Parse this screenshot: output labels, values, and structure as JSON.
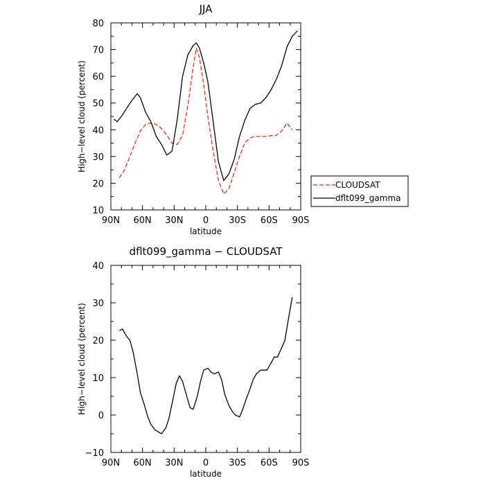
{
  "chart_data": [
    {
      "type": "line",
      "title": "JJA",
      "xlabel": "latitude",
      "ylabel": "High−level cloud (percent)",
      "xlim": [
        90,
        -90
      ],
      "ylim": [
        10,
        80
      ],
      "x_ticks": [
        90,
        60,
        30,
        0,
        -30,
        -60,
        -90
      ],
      "x_tick_labels": [
        "90N",
        "60N",
        "30N",
        "0",
        "30S",
        "60S",
        "90S"
      ],
      "y_ticks": [
        10,
        20,
        30,
        40,
        50,
        60,
        70,
        80
      ],
      "y_tick_labels": [
        "10",
        "20",
        "30",
        "40",
        "50",
        "60",
        "70",
        "80"
      ],
      "grid": false,
      "legend": "right",
      "series": [
        {
          "name": "CLOUDSAT",
          "color": "#e8271f",
          "dash": true,
          "x": [
            82,
            77,
            72,
            67,
            62,
            57,
            52,
            47,
            42,
            37,
            32,
            27,
            22,
            17,
            12,
            9,
            6,
            2,
            -2,
            -7,
            -12,
            -17,
            -22,
            -27,
            -32,
            -37,
            -42,
            -47,
            -52,
            -57,
            -62,
            -67,
            -72,
            -77,
            -82
          ],
          "y": [
            22,
            25,
            30,
            35,
            39.5,
            42,
            42.5,
            42,
            40.5,
            38,
            35,
            34.5,
            38,
            49,
            63,
            70.5,
            67,
            57,
            45,
            32,
            21,
            16,
            18,
            24,
            30,
            35,
            37,
            37.5,
            37.5,
            37.5,
            37.8,
            38,
            39.5,
            42.5,
            40
          ]
        },
        {
          "name": "dflt099_gamma",
          "color": "#000000",
          "dash": false,
          "x": [
            87,
            84,
            80,
            75,
            70,
            65,
            62,
            57,
            52,
            47,
            42,
            37,
            32,
            27,
            22,
            17,
            12,
            9,
            6,
            2,
            -2,
            -7,
            -12,
            -17,
            -22,
            -27,
            -32,
            -37,
            -42,
            -47,
            -52,
            -57,
            -62,
            -67,
            -72,
            -77,
            -82,
            -87
          ],
          "y": [
            44,
            43,
            45,
            48,
            51,
            53.5,
            52,
            46.5,
            43,
            37.5,
            34.5,
            30.5,
            32,
            44,
            60,
            68,
            71.5,
            72.5,
            70.5,
            65,
            58,
            43,
            28,
            21,
            23.5,
            29,
            37.5,
            43.5,
            48,
            49.5,
            50,
            52,
            55,
            59,
            64,
            71,
            75,
            77
          ]
        }
      ]
    },
    {
      "type": "line",
      "title": "dflt099_gamma − CLOUDSAT",
      "xlabel": "latitude",
      "ylabel": "High−level cloud (percent)",
      "xlim": [
        90,
        -90
      ],
      "ylim": [
        -10,
        40
      ],
      "x_ticks": [
        90,
        60,
        30,
        0,
        -30,
        -60,
        -90
      ],
      "x_tick_labels": [
        "90N",
        "60N",
        "30N",
        "0",
        "30S",
        "60S",
        "90S"
      ],
      "y_ticks": [
        -10,
        0,
        10,
        20,
        30,
        40
      ],
      "y_tick_labels": [
        "−10",
        "0",
        "10",
        "20",
        "30",
        "40"
      ],
      "grid": false,
      "series": [
        {
          "color": "#000000",
          "dash": false,
          "x": [
            82,
            79,
            75,
            72,
            69,
            65,
            62,
            58,
            55,
            52,
            48,
            45,
            42,
            38,
            35,
            32,
            28,
            25,
            22,
            18,
            15,
            12,
            8,
            5,
            2,
            -2,
            -5,
            -8,
            -12,
            -15,
            -18,
            -22,
            -25,
            -28,
            -32,
            -35,
            -38,
            -42,
            -45,
            -48,
            -52,
            -55,
            -58,
            -62,
            -65,
            -68,
            -72,
            -75,
            -78,
            -82
          ],
          "y": [
            22.5,
            23,
            21,
            20,
            17,
            11,
            6,
            2.5,
            -0.5,
            -2.5,
            -4,
            -4.5,
            -5,
            -3.5,
            -1,
            3,
            8.5,
            10.5,
            9,
            5,
            2,
            1.5,
            5,
            9,
            12,
            12.5,
            11.5,
            11,
            11.5,
            9.5,
            5.5,
            2.5,
            1,
            0,
            -0.5,
            1.5,
            4,
            7,
            9.5,
            11,
            12,
            12,
            12,
            14,
            15.5,
            15.5,
            18,
            20,
            25,
            31.5
          ]
        }
      ]
    }
  ]
}
